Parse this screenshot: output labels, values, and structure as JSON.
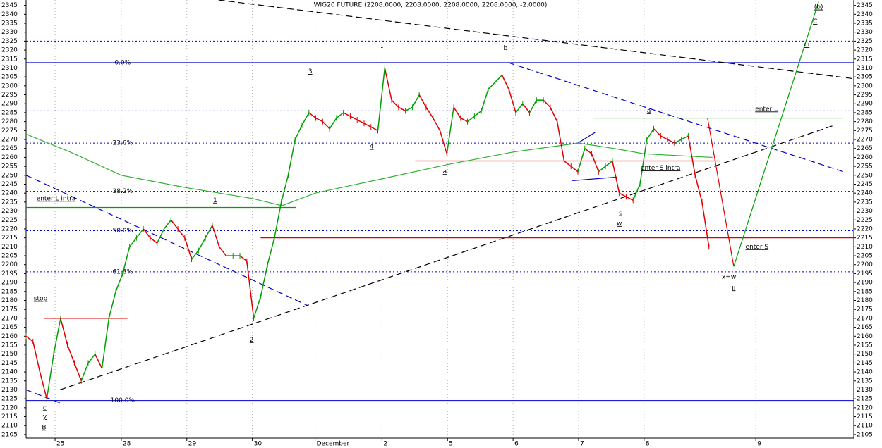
{
  "chart_data": {
    "type": "line",
    "title": "WIG20 FUTURE (2208.0000, 2208.0000, 2208.0000, 2208.0000, -2.0000)",
    "up_color": "#00a000",
    "down_color": "#e00000",
    "values": [
      2160,
      2157,
      2140,
      2125,
      2150,
      2170,
      2155,
      2145,
      2135,
      2145,
      2150,
      2142,
      2170,
      2185,
      2195,
      2210,
      2215,
      2220,
      2215,
      2212,
      2220,
      2225,
      2220,
      2215,
      2203,
      2208,
      2215,
      2222,
      2210,
      2205,
      2205,
      2205,
      2202,
      2170,
      2182,
      2200,
      2215,
      2235,
      2250,
      2270,
      2278,
      2285,
      2282,
      2280,
      2276,
      2282,
      2285,
      2283,
      2281,
      2279,
      2277,
      2275,
      2310,
      2292,
      2288,
      2286,
      2288,
      2295,
      2288,
      2282,
      2275,
      2262,
      2288,
      2282,
      2280,
      2283,
      2286,
      2298,
      2302,
      2306,
      2298,
      2285,
      2290,
      2285,
      2292,
      2292,
      2288,
      2280,
      2258,
      2255,
      2252,
      2265,
      2262,
      2252,
      2255,
      2258,
      2240,
      2238,
      2236,
      2245,
      2270,
      2276,
      2272,
      2270,
      2268,
      2270,
      2272,
      2250,
      2235,
      2210
    ],
    "xlim": [
      0,
      120
    ],
    "ylim": [
      2103,
      2348
    ],
    "xticks": [
      {
        "value": 4.2,
        "label": "25"
      },
      {
        "value": 13.8,
        "label": "28"
      },
      {
        "value": 23.3,
        "label": "29"
      },
      {
        "value": 32.8,
        "label": "30"
      },
      {
        "value": 41.9,
        "label": "December"
      },
      {
        "value": 51.6,
        "label": "2"
      },
      {
        "value": 61.1,
        "label": "5"
      },
      {
        "value": 70.6,
        "label": "6"
      },
      {
        "value": 80.1,
        "label": "7"
      },
      {
        "value": 89.6,
        "label": "8"
      },
      {
        "value": 105.8,
        "label": "9"
      }
    ],
    "yticks": [
      2105,
      2110,
      2115,
      2120,
      2125,
      2130,
      2135,
      2140,
      2145,
      2150,
      2155,
      2160,
      2165,
      2170,
      2175,
      2180,
      2185,
      2190,
      2195,
      2200,
      2205,
      2210,
      2215,
      2220,
      2225,
      2230,
      2235,
      2240,
      2245,
      2250,
      2255,
      2260,
      2265,
      2270,
      2275,
      2280,
      2285,
      2290,
      2295,
      2300,
      2305,
      2310,
      2315,
      2320,
      2325,
      2330,
      2335,
      2340,
      2345
    ],
    "levels": [
      {
        "value": 2325,
        "color": "#0000cc",
        "style": "dotted"
      },
      {
        "value": 2286,
        "color": "#0000cc",
        "style": "dotted"
      },
      {
        "value": 2313,
        "label": "0.0%",
        "color": "#0000cc",
        "style": "solid"
      },
      {
        "value": 2268,
        "label": "23.6%",
        "color": "#0000cc",
        "style": "dotted"
      },
      {
        "value": 2241,
        "label": "38.2%",
        "color": "#0000cc",
        "style": "dotted"
      },
      {
        "value": 2219,
        "label": "50.0%",
        "color": "#0000cc",
        "style": "dotted"
      },
      {
        "value": 2196,
        "label": "61.8%",
        "color": "#0000cc",
        "style": "dotted"
      },
      {
        "value": 2124,
        "label": "100.0%",
        "color": "#0000cc",
        "style": "solid"
      }
    ],
    "trendlines": [
      {
        "points": [
          [
            4.9,
            2130
          ],
          [
            117.2,
            2278
          ]
        ],
        "color": "#000000",
        "style": "dashed"
      },
      {
        "points": [
          [
            27.9,
            2348
          ],
          [
            120,
            2304
          ]
        ],
        "color": "#000000",
        "style": "dashed"
      },
      {
        "points": [
          [
            0,
            2250
          ],
          [
            40.9,
            2177
          ]
        ],
        "color": "#0000cc",
        "style": "dashed"
      },
      {
        "points": [
          [
            69.9,
            2313
          ],
          [
            118.5,
            2252
          ]
        ],
        "color": "#0000cc",
        "style": "dashed"
      },
      {
        "points": [
          [
            0,
            2130
          ],
          [
            5.4,
            2122
          ]
        ],
        "color": "#0000cc",
        "style": "dashed"
      },
      {
        "points": [
          [
            79.2,
            2247
          ],
          [
            85.7,
            2249
          ]
        ],
        "color": "#0000cc",
        "style": "solid"
      },
      {
        "points": [
          [
            80,
            2268
          ],
          [
            82.5,
            2274
          ]
        ],
        "color": "#0000cc",
        "style": "solid"
      },
      {
        "points": [
          [
            0,
            2232
          ],
          [
            39.1,
            2232
          ]
        ],
        "color": "#00a000",
        "style": "solid"
      },
      {
        "points": [
          [
            82.3,
            2282
          ],
          [
            118.4,
            2282
          ]
        ],
        "color": "#00a000",
        "style": "solid"
      },
      {
        "points": [
          [
            2.6,
            2170
          ],
          [
            14.7,
            2170
          ]
        ],
        "color": "#e00000",
        "style": "solid"
      },
      {
        "points": [
          [
            56.4,
            2258
          ],
          [
            100.6,
            2258
          ]
        ],
        "color": "#e00000",
        "style": "solid"
      },
      {
        "points": [
          [
            34,
            2215
          ],
          [
            120,
            2215
          ]
        ],
        "color": "#e00000",
        "style": "solid"
      },
      {
        "points": [
          [
            98.8,
            2282
          ],
          [
            102.6,
            2199
          ]
        ],
        "color": "#e00000",
        "style": "solid"
      },
      {
        "points": [
          [
            102.6,
            2199
          ],
          [
            114.9,
            2347
          ]
        ],
        "color": "#00a000",
        "style": "solid"
      },
      {
        "points": [
          [
            0,
            2273
          ],
          [
            6.4,
            2263
          ],
          [
            13.8,
            2250
          ],
          [
            23.3,
            2243
          ],
          [
            32.8,
            2237
          ],
          [
            37.1,
            2233
          ],
          [
            41.9,
            2240
          ],
          [
            51.6,
            2248
          ],
          [
            61.1,
            2256
          ],
          [
            70.6,
            2263
          ],
          [
            80.1,
            2268
          ],
          [
            85.2,
            2265
          ],
          [
            89.6,
            2262
          ],
          [
            99.5,
            2260
          ]
        ],
        "color": "#30b030",
        "style": "solid"
      }
    ],
    "annotations": [
      {
        "text": "1",
        "x": 27.4,
        "y": 2236,
        "color": "#e00000"
      },
      {
        "text": "2",
        "x": 32.7,
        "y": 2158,
        "color": "#e00000"
      },
      {
        "text": "3",
        "x": 41.2,
        "y": 2308,
        "color": "#e00000"
      },
      {
        "text": "4",
        "x": 50.1,
        "y": 2266,
        "color": "#e00000"
      },
      {
        "text": "i",
        "x": 51.6,
        "y": 2323,
        "color": "#0000cc"
      },
      {
        "text": "b",
        "x": 69.5,
        "y": 2321,
        "color": "#e00000"
      },
      {
        "text": "a",
        "x": 60.7,
        "y": 2252,
        "color": "#e00000"
      },
      {
        "text": "a",
        "x": 90.3,
        "y": 2286,
        "color": "#e00000"
      },
      {
        "text": "c",
        "x": 86.2,
        "y": 2229,
        "color": "#e00000"
      },
      {
        "text": "w",
        "x": 86,
        "y": 2223,
        "color": "#e00000"
      },
      {
        "text": "x=w",
        "x": 101.9,
        "y": 2193,
        "color": "#e00000"
      },
      {
        "text": "ii",
        "x": 102.6,
        "y": 2187,
        "color": "#0000cc"
      },
      {
        "text": "iii",
        "x": 113.2,
        "y": 2323,
        "color": "#0000cc"
      },
      {
        "text": "(b)",
        "x": 114.9,
        "y": 2344,
        "color": "#00a000"
      },
      {
        "text": "C",
        "x": 114.4,
        "y": 2336,
        "color": "#cc00cc"
      },
      {
        "text": "c",
        "x": 2.7,
        "y": 2120,
        "color": "#0000cc"
      },
      {
        "text": "y",
        "x": 2.7,
        "y": 2115,
        "color": "#0000cc"
      },
      {
        "text": "B",
        "x": 2.6,
        "y": 2109,
        "color": "#cc00cc"
      },
      {
        "text": "enter L intra",
        "x": 1.5,
        "y": 2237,
        "color": "#00a000"
      },
      {
        "text": "enter S intra",
        "x": 89.1,
        "y": 2254,
        "color": "#e00000"
      },
      {
        "text": "enter L",
        "x": 105.7,
        "y": 2287,
        "color": "#00a000"
      },
      {
        "text": "enter S",
        "x": 104.3,
        "y": 2210,
        "color": "#e00000"
      },
      {
        "text": "stop",
        "x": 2.1,
        "y": 2181,
        "color": "#e00000"
      }
    ]
  }
}
